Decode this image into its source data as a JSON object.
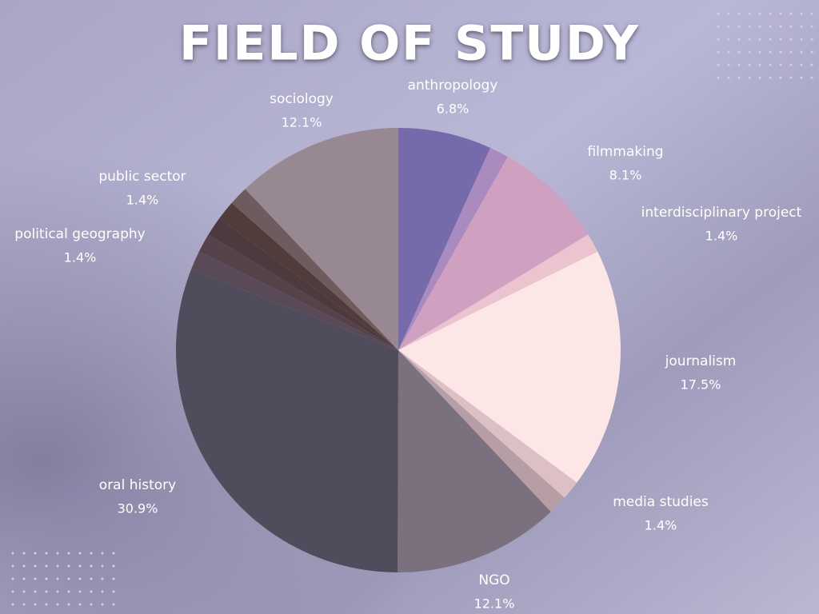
{
  "chart_data": {
    "type": "pie",
    "title": "FIELD OF STUDY",
    "categories": [
      "anthropology",
      null,
      "filmmaking",
      "interdisciplinary project",
      "journalism",
      null,
      "media studies",
      "NGO",
      "oral history",
      null,
      "political geography",
      null,
      null,
      "public sector",
      "sociology"
    ],
    "values": [
      6.8,
      1.4,
      8.1,
      1.4,
      17.5,
      1.4,
      1.4,
      12.1,
      30.9,
      1.4,
      1.4,
      1.4,
      1.4,
      1.4,
      12.1
    ],
    "value_labels": [
      "6.8%",
      null,
      "8.1%",
      "1.4%",
      "17.5%",
      null,
      "1.4%",
      "12.1%",
      "30.9%",
      null,
      "1.4%",
      null,
      null,
      "1.4%",
      "12.1%"
    ],
    "colors": [
      "#756bab",
      "#a98bbf",
      "#d0a0c0",
      "#ecc4cf",
      "#fde6e6",
      "#dcc0c6",
      "#b79ea5",
      "#7b707d",
      "#4f4c5b",
      "#5a4a58",
      "#55424a",
      "#4d3a3e",
      "#503c3a",
      "#6e5b5e",
      "#988891"
    ]
  }
}
